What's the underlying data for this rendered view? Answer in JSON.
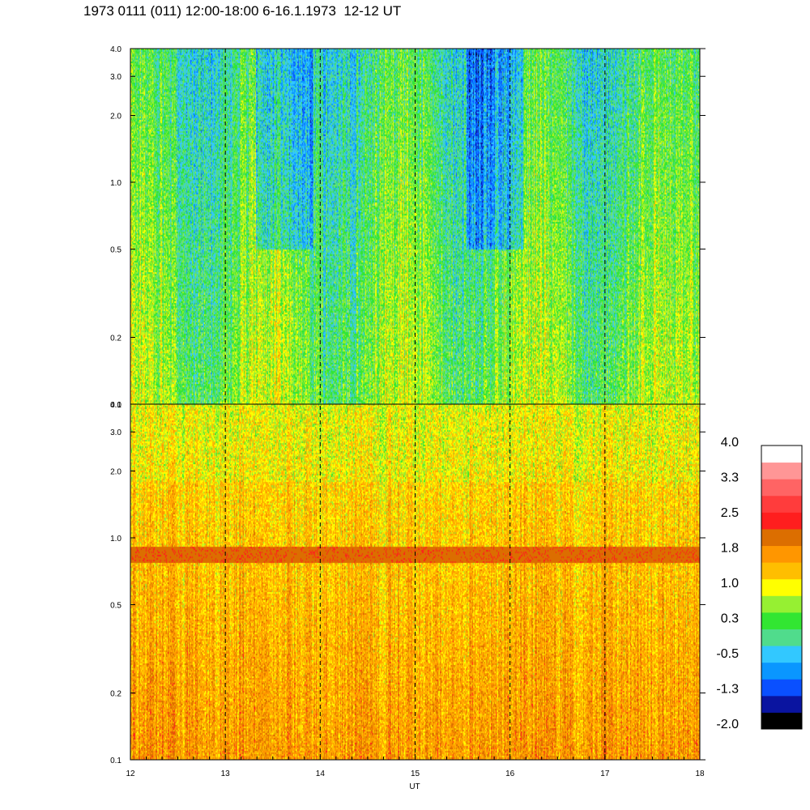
{
  "title": "1973 0111 (011) 12:00-18:00 6-16.1.1973  12-12 UT",
  "chart_data": {
    "type": "heatmap",
    "title": "1973 0111 (011) 12:00-18:00 6-16.1.1973  12-12 UT",
    "xlabel": "UT",
    "x_ticks": [
      "12",
      "13",
      "14",
      "15",
      "16",
      "17",
      "18"
    ],
    "xlim": [
      12,
      18
    ],
    "vertical_dashed_lines_at": [
      13,
      14,
      15,
      16,
      17
    ],
    "y_scale": "log",
    "panels": [
      {
        "name": "top",
        "ylim": [
          0.1,
          4.0
        ],
        "y_ticks": [
          "0.1",
          "0.2",
          "0.5",
          "1.0",
          "2.0",
          "3.0",
          "4.0"
        ],
        "dominant_range": [
          -0.5,
          1.0
        ]
      },
      {
        "name": "bottom",
        "ylim": [
          0.1,
          4.0
        ],
        "y_ticks": [
          "0.1",
          "0.2",
          "0.5",
          "1.0",
          "2.0",
          "3.0",
          "4.0"
        ],
        "dominant_range": [
          0.8,
          2.2
        ],
        "band_center": 0.85
      }
    ],
    "colorbar": {
      "labels": [
        "4.0",
        "3.3",
        "2.5",
        "1.8",
        "1.0",
        "0.3",
        "-0.5",
        "-1.3",
        "-2.0"
      ],
      "range": [
        -2.0,
        4.0
      ],
      "colors": [
        "#000000",
        "#0a14a0",
        "#0a50ff",
        "#0a96ff",
        "#32c8ff",
        "#50dc8c",
        "#32e632",
        "#96f032",
        "#ffff00",
        "#ffbe00",
        "#ff9600",
        "#dc6e00",
        "#ff1e1e",
        "#ff3c3c",
        "#ff6464",
        "#ff9696",
        "#ffffff"
      ]
    }
  }
}
